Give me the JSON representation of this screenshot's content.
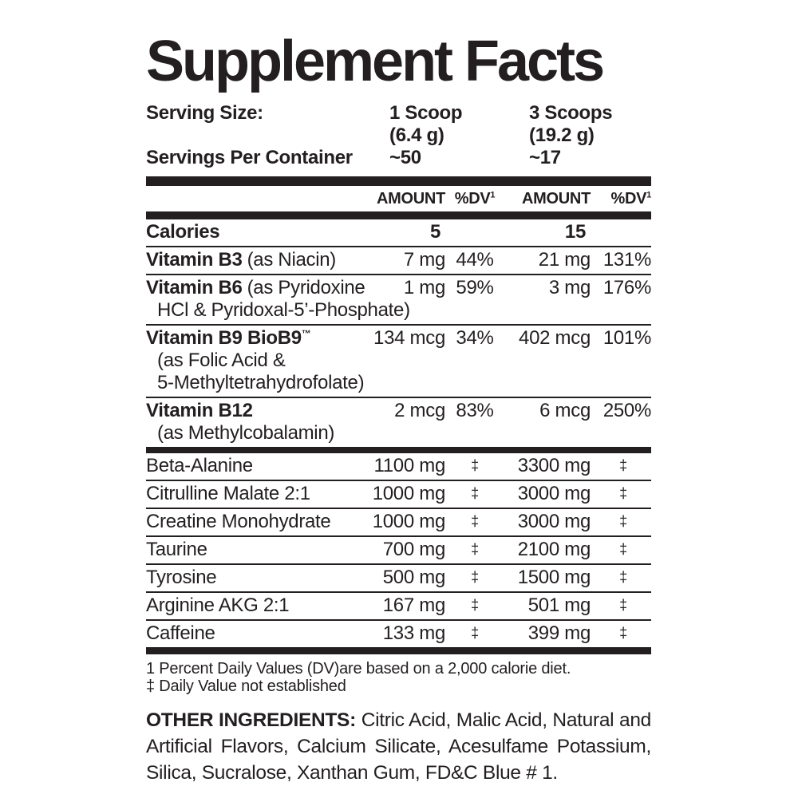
{
  "title": "Supplement Facts",
  "serving": {
    "size_label": "Serving Size:",
    "per_container_label": "Servings Per Container",
    "col1": {
      "scoop": "1 Scoop",
      "weight": "(6.4 g)",
      "servings": "~50"
    },
    "col2": {
      "scoop": "3 Scoops",
      "weight": "(19.2 g)",
      "servings": "~17"
    }
  },
  "table": {
    "header": {
      "amount": "AMOUNT",
      "dv": "%DV",
      "dv_note_mark": "1"
    },
    "calories": {
      "name": "Calories",
      "amount1": "5",
      "amount2": "15"
    },
    "vitamins": [
      {
        "name": "Vitamin B3",
        "note": "(as Niacin)",
        "amount1": "7 mg",
        "dv1": "44%",
        "amount2": "21 mg",
        "dv2": "131%"
      },
      {
        "name": "Vitamin B6",
        "note": "(as Pyridoxine",
        "sub0": "HCl & Pyridoxal-5’-Phosphate)",
        "amount1": "1 mg",
        "dv1": "59%",
        "amount2": "3 mg",
        "dv2": "176%"
      },
      {
        "name": "Vitamin B9 BioB9",
        "tm": "™",
        "sub0": "(as Folic Acid &",
        "sub1": "5-Methyltetrahydrofolate)",
        "amount1": "134 mcg",
        "dv1": "34%",
        "amount2": "402 mcg",
        "dv2": "101%"
      },
      {
        "name": "Vitamin B12",
        "sub0": "(as Methylcobalamin)",
        "amount1": "2 mcg",
        "dv1": "83%",
        "amount2": "6 mcg",
        "dv2": "250%"
      }
    ],
    "ingredients": [
      {
        "name": "Beta-Alanine",
        "amount1": "1100 mg",
        "dv1": "‡",
        "amount2": "3300 mg",
        "dv2": "‡"
      },
      {
        "name": "Citrulline Malate 2:1",
        "amount1": "1000 mg",
        "dv1": "‡",
        "amount2": "3000 mg",
        "dv2": "‡"
      },
      {
        "name": "Creatine Monohydrate",
        "amount1": "1000 mg",
        "dv1": "‡",
        "amount2": "3000 mg",
        "dv2": "‡"
      },
      {
        "name": "Taurine",
        "amount1": "700 mg",
        "dv1": "‡",
        "amount2": "2100 mg",
        "dv2": "‡"
      },
      {
        "name": "Tyrosine",
        "amount1": "500 mg",
        "dv1": "‡",
        "amount2": "1500 mg",
        "dv2": "‡"
      },
      {
        "name": "Arginine AKG 2:1",
        "amount1": "167 mg",
        "dv1": "‡",
        "amount2": "501 mg",
        "dv2": "‡"
      },
      {
        "name": "Caffeine",
        "amount1": "133 mg",
        "dv1": "‡",
        "amount2": "399 mg",
        "dv2": "‡"
      }
    ]
  },
  "footnotes": {
    "dv_note": "1 Percent Daily Values (DV)are based on a 2,000 calorie diet.",
    "dagger_note": "‡ Daily Value not established"
  },
  "other_ingredients": {
    "label": "OTHER INGREDIENTS:",
    "text": "Citric Acid, Malic Acid, Natural and Artificial Flavors, Calcium Silicate, Acesulfame Potassium, Silica, Sucralose, Xanthan Gum, FD&C Blue # 1."
  },
  "colors": {
    "text": "#231f20",
    "rule": "#231f20",
    "background": "#ffffff"
  }
}
